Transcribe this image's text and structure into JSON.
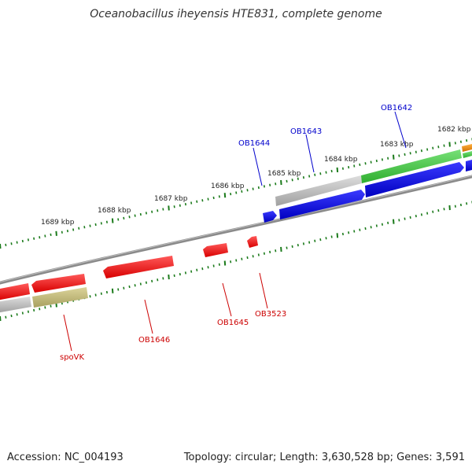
{
  "title": "Oceanobacillus iheyensis HTE831, complete genome",
  "footer": {
    "accession_label": "Accession:",
    "accession": "NC_004193",
    "topology_label": "Topology:",
    "topology": "circular",
    "length_label": "Length:",
    "length": "3,630,528 bp",
    "genes_label": "Genes:",
    "genes": "3,591"
  },
  "kbp_labels": [
    "1682 kbp",
    "1683 kbp",
    "1684 kbp",
    "1685 kbp",
    "1686 kbp",
    "1687 kbp",
    "1688 kbp",
    "1689 kbp"
  ],
  "gene_labels": {
    "forward": [
      "OB1642",
      "OB1643",
      "OB1644"
    ],
    "reverse": [
      "OB1645",
      "OB3523",
      "OB1646",
      "spoVK"
    ]
  },
  "colors": {
    "backbone": "#888888",
    "tick": "#1a7a1a",
    "forward_label": "#0000cc",
    "reverse_label": "#cc0000",
    "red_gene": "#e81010",
    "blue_gene": "#0b0bd9",
    "green_gene": "#44c444",
    "gray_gene": "#b8b8b8",
    "olive_gene": "#c0b870",
    "orange_gene": "#e89010"
  }
}
